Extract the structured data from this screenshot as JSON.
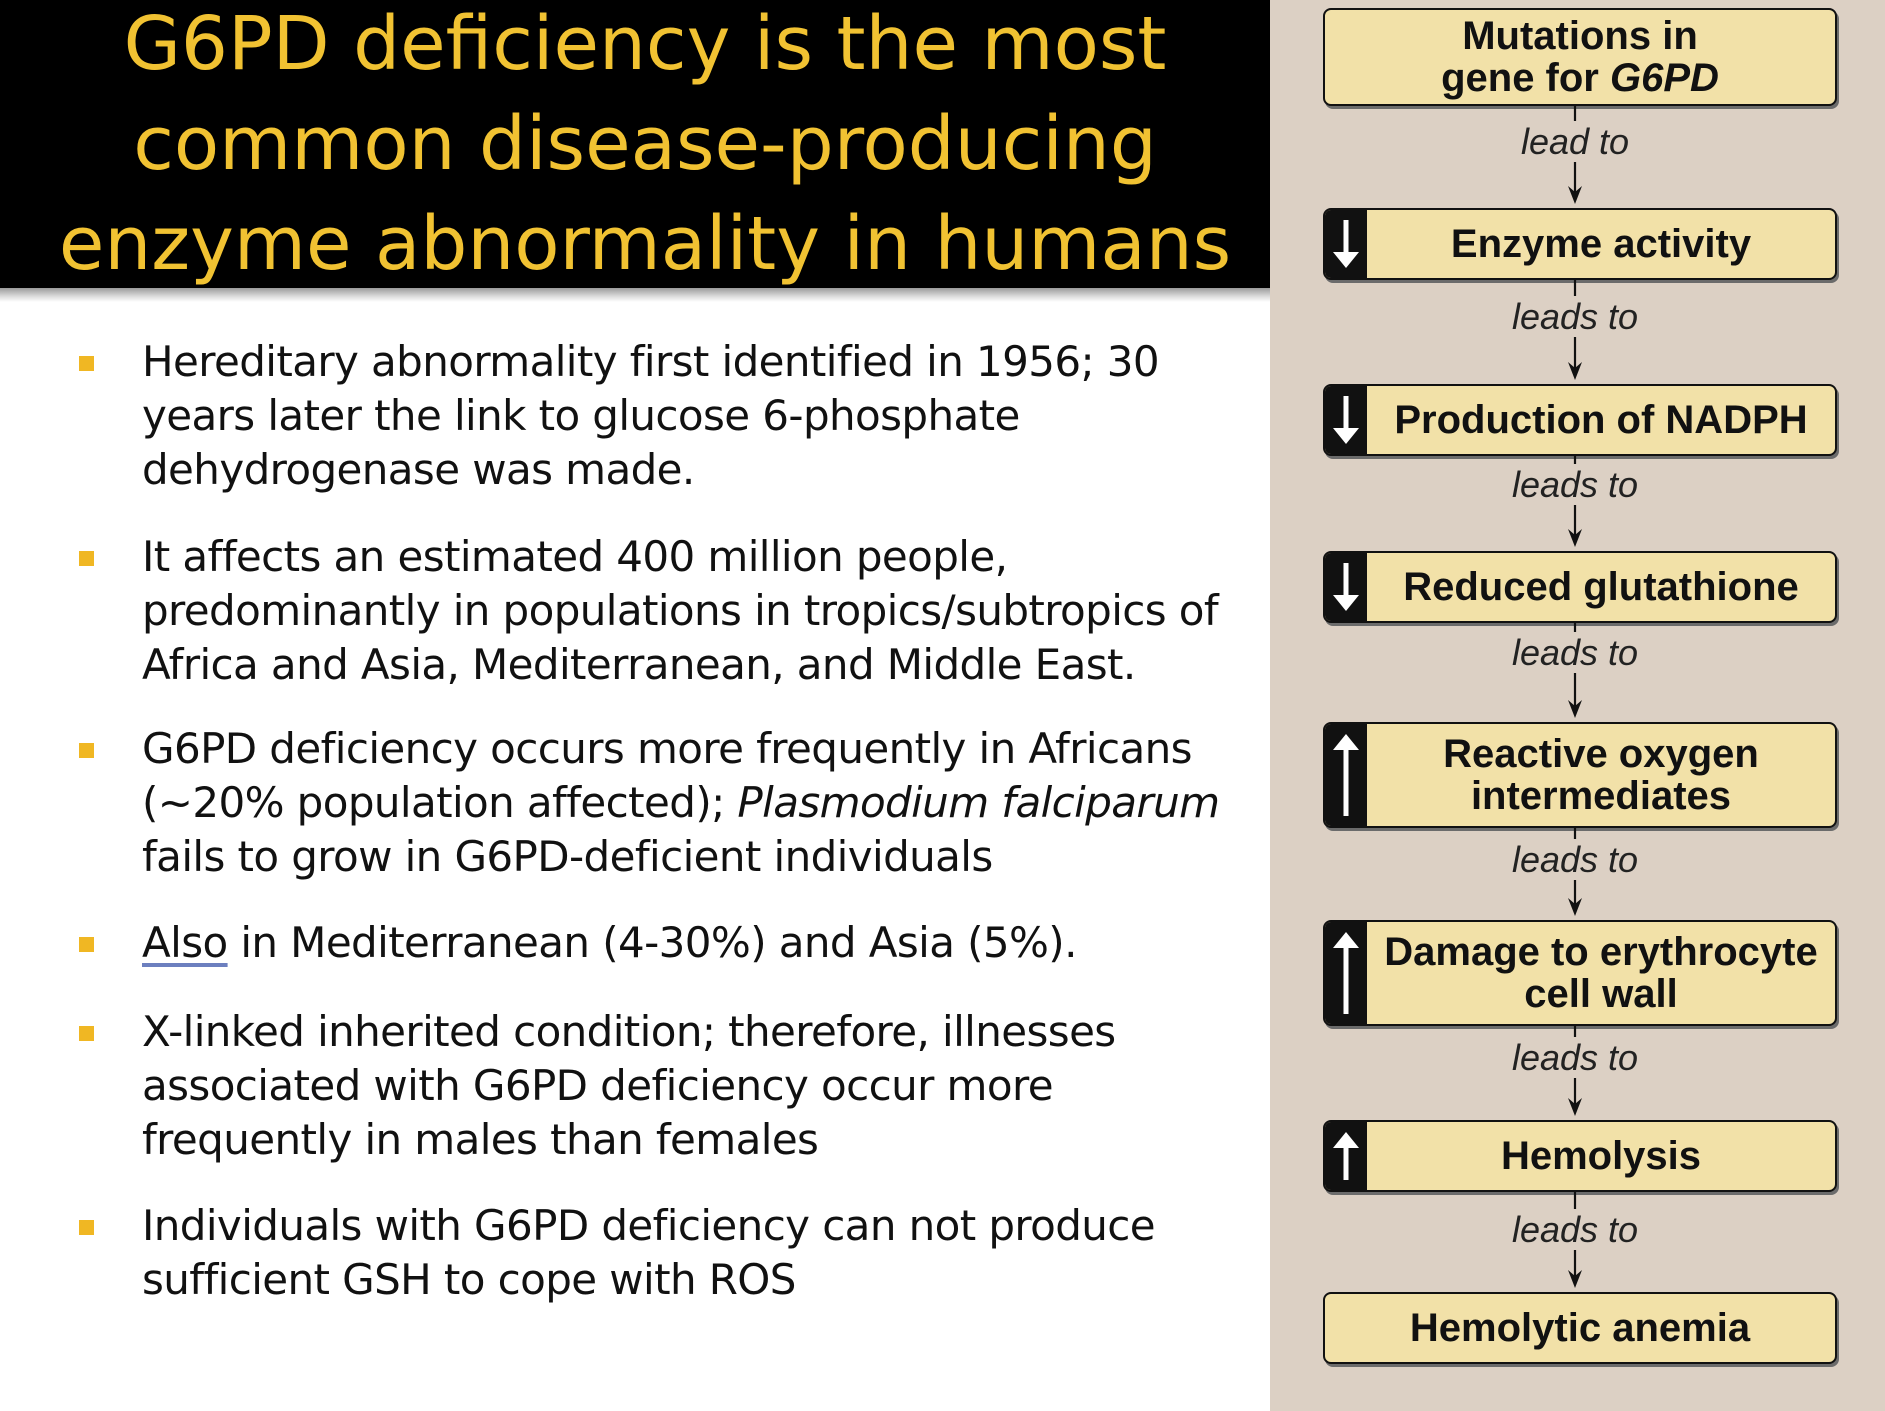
{
  "title": {
    "lines": [
      "G6PD deficiency is the most",
      "common disease-producing",
      "enzyme abnormality in humans"
    ]
  },
  "bullets": [
    {
      "segments": [
        {
          "text": "Hereditary abnormality first identified in 1956; 30 years later the link to glucose 6-phosphate dehydrogenase was made."
        }
      ]
    },
    {
      "segments": [
        {
          "text": "It affects an estimated 400 million people, predominantly in populations in tropics/subtropics of Africa and Asia, Mediterranean, and Middle East."
        }
      ]
    },
    {
      "segments": [
        {
          "text": "G6PD deficiency occurs more frequently in Africans (~20% population affected); "
        },
        {
          "text": "Plasmodium falciparum",
          "italic": true
        },
        {
          "text": " fails to grow in G6PD-deficient individuals"
        }
      ]
    },
    {
      "segments": [
        {
          "text": "Also",
          "link": true
        },
        {
          "text": " in Mediterranean (4-30%) and Asia (5%)."
        }
      ]
    },
    {
      "segments": [
        {
          "text": "X-linked inherited condition; therefore, illnesses associated with G6PD deficiency occur more frequently in males than females"
        }
      ]
    },
    {
      "segments": [
        {
          "text": "Individuals with G6PD deficiency can not produce sufficient GSH to cope with ROS"
        }
      ]
    }
  ],
  "flowchart": {
    "steps": [
      {
        "lines": [
          [
            {
              "text": "Mutations in"
            }
          ],
          [
            {
              "text": "gene for "
            },
            {
              "text": "G6PD",
              "italic": true
            }
          ]
        ],
        "change": "none"
      },
      {
        "lines": [
          [
            {
              "text": "Enzyme activity"
            }
          ]
        ],
        "change": "decrease"
      },
      {
        "lines": [
          [
            {
              "text": "Production of NADPH"
            }
          ]
        ],
        "change": "decrease"
      },
      {
        "lines": [
          [
            {
              "text": "Reduced glutathione"
            }
          ]
        ],
        "change": "decrease"
      },
      {
        "lines": [
          [
            {
              "text": "Reactive oxygen"
            }
          ],
          [
            {
              "text": "intermediates"
            }
          ]
        ],
        "change": "increase"
      },
      {
        "lines": [
          [
            {
              "text": "Damage to erythrocyte"
            }
          ],
          [
            {
              "text": "cell wall"
            }
          ]
        ],
        "change": "increase"
      },
      {
        "lines": [
          [
            {
              "text": "Hemolysis"
            }
          ]
        ],
        "change": "increase"
      },
      {
        "lines": [
          [
            {
              "text": "Hemolytic anemia"
            }
          ]
        ],
        "change": "none"
      }
    ],
    "connectors": [
      "lead to",
      "leads to",
      "leads to",
      "leads to",
      "leads to",
      "leads to",
      "leads to"
    ]
  },
  "colors": {
    "title_text": "#f1c232",
    "title_background": "#000000",
    "bullet_marker": "#f0b723",
    "panel_background": "#dcd0c4",
    "box_fill": "#f2e1a8"
  }
}
